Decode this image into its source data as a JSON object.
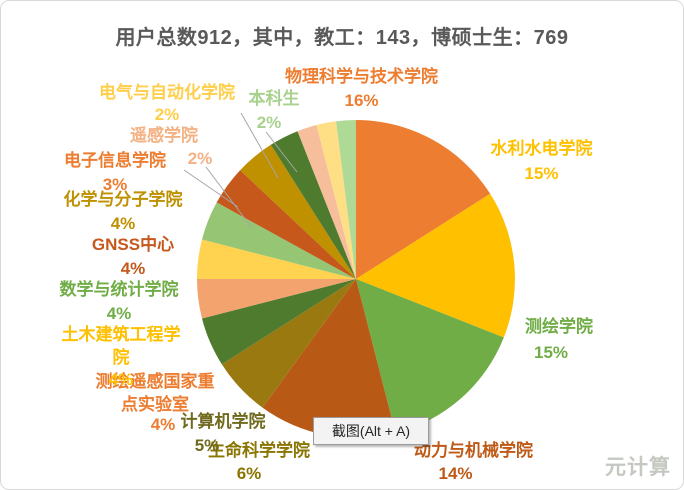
{
  "tooltip": {
    "text": "截图(Alt + A)"
  },
  "watermark": "元计算",
  "chart_data": {
    "type": "pie",
    "title": "用户总数912，其中，教工：143，博硕士生：769",
    "start_angle_deg": 0,
    "direction": "clockwise",
    "legend": "none",
    "slices": [
      {
        "name": "物理科学与技术学院",
        "value": 16,
        "pct_label": "16%",
        "color": "#ED7D31",
        "label_color": "#ED7D31"
      },
      {
        "name": "水利水电学院",
        "value": 15,
        "pct_label": "15%",
        "color": "#FFC000",
        "label_color": "#FFC000"
      },
      {
        "name": "测绘学院",
        "value": 15,
        "pct_label": "15%",
        "color": "#70AD47",
        "label_color": "#70AD47"
      },
      {
        "name": "动力与机械学院",
        "value": 14,
        "pct_label": "14%",
        "color": "#B85A16",
        "label_color": "#BE5A16"
      },
      {
        "name": "生命科学学院",
        "value": 6,
        "pct_label": "6%",
        "color": "#9A7A10",
        "label_color": "#8A7500"
      },
      {
        "name": "计算机学院",
        "value": 5,
        "pct_label": "5%",
        "color": "#4F7B2E",
        "label_color": "#6F6A1D"
      },
      {
        "name": "测绘遥感国家重点实验室",
        "value": 4,
        "pct_label": "4%",
        "color": "#F2A36E",
        "label_color": "#ED7D31"
      },
      {
        "name": "土木建筑工程学院",
        "value": 4,
        "pct_label": "4%",
        "color": "#FFD24F",
        "label_color": "#FFC000"
      },
      {
        "name": "数学与统计学院",
        "value": 4,
        "pct_label": "4%",
        "color": "#96C573",
        "label_color": "#70AD47"
      },
      {
        "name": "GNSS中心",
        "value": 4,
        "pct_label": "4%",
        "color": "#C5581A",
        "label_color": "#C5581A"
      },
      {
        "name": "化学与分子学院",
        "value": 4,
        "pct_label": "4%",
        "color": "#BF9000",
        "label_color": "#BF9000"
      },
      {
        "name": "电子信息学院",
        "value": 3,
        "pct_label": "3%",
        "color": "#4F7B2E",
        "label_color": "#ED7D31"
      },
      {
        "name": "遥感学院",
        "value": 2,
        "pct_label": "2%",
        "color": "#F6BE9B",
        "label_color": "#F4B183"
      },
      {
        "name": "电气与自动化学院",
        "value": 2,
        "pct_label": "2%",
        "color": "#FFDF85",
        "label_color": "#FFCF4B"
      },
      {
        "name": "本科生",
        "value": 2,
        "pct_label": "2%",
        "color": "#AEDA95",
        "label_color": "#A9D18E"
      }
    ]
  }
}
